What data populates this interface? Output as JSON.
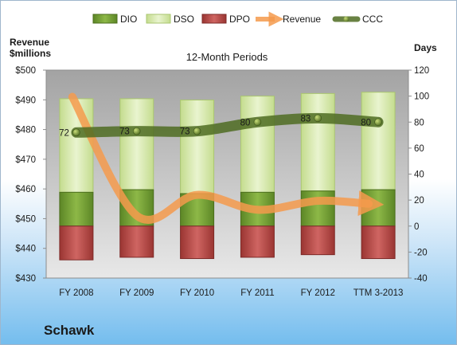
{
  "company": "Schawk",
  "chart_data": {
    "type": "bar",
    "title": "12-Month Periods",
    "ylabel_left": "Revenue\n$millions",
    "ylabel_right": "Days",
    "categories": [
      "FY 2008",
      "FY 2009",
      "FY 2010",
      "FY 2011",
      "FY 2012",
      "TTM 3-2013"
    ],
    "left_axis": {
      "min": 430,
      "max": 500,
      "step": 10,
      "tick_labels": [
        "$430",
        "$440",
        "$450",
        "$460",
        "$470",
        "$480",
        "$490",
        "$500"
      ]
    },
    "right_axis": {
      "min": -40,
      "max": 120,
      "step": 20,
      "tick_labels": [
        "-40",
        "-20",
        "0",
        "20",
        "40",
        "60",
        "80",
        "100",
        "120"
      ]
    },
    "series": [
      {
        "name": "DIO",
        "type": "bar",
        "axis": "right",
        "color": "#6e9a2c",
        "values": [
          26,
          28,
          25,
          26,
          27,
          28
        ]
      },
      {
        "name": "DSO",
        "type": "bar",
        "axis": "right",
        "color": "#d3e8a6",
        "values": [
          72,
          70,
          72,
          74,
          75,
          75
        ]
      },
      {
        "name": "DPO",
        "type": "bar",
        "axis": "right",
        "color": "#c0504d",
        "values": [
          -26,
          -24,
          -25,
          -24,
          -22,
          -25
        ]
      },
      {
        "name": "Revenue",
        "type": "line",
        "axis": "left",
        "color": "#f59a4c",
        "values": [
          491,
          451,
          458,
          453,
          456,
          455
        ]
      },
      {
        "name": "CCC",
        "type": "line",
        "axis": "right",
        "color": "#4f6c22",
        "values": [
          72,
          73,
          73,
          80,
          83,
          80
        ],
        "data_labels": [
          "72",
          "73",
          "73",
          "80",
          "83",
          "80"
        ]
      }
    ],
    "legend_position": "top",
    "grid": false
  }
}
